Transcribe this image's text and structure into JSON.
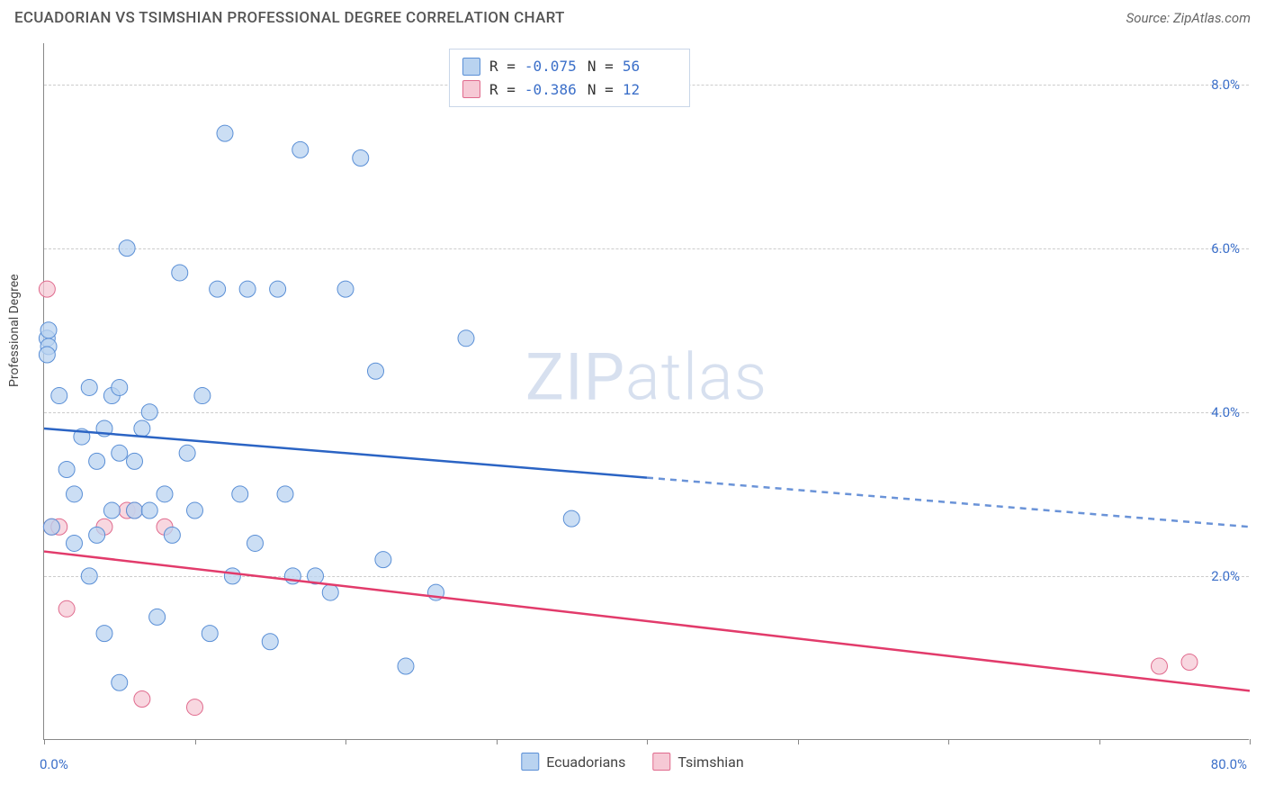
{
  "header": {
    "title": "ECUADORIAN VS TSIMSHIAN PROFESSIONAL DEGREE CORRELATION CHART",
    "source": "Source: ZipAtlas.com"
  },
  "ylabel": "Professional Degree",
  "watermark": {
    "part1": "ZIP",
    "part2": "atlas"
  },
  "chart": {
    "type": "scatter",
    "xlim": [
      0,
      80
    ],
    "ylim": [
      0,
      8.5
    ],
    "ytick_values": [
      2.0,
      4.0,
      6.0,
      8.0
    ],
    "ytick_labels": [
      "2.0%",
      "4.0%",
      "6.0%",
      "8.0%"
    ],
    "xtick_values": [
      0,
      10,
      20,
      30,
      40,
      50,
      60,
      70,
      80
    ],
    "xaxis_min_label": "0.0%",
    "xaxis_max_label": "80.0%",
    "grid_color": "#cccccc",
    "axis_color": "#888888",
    "background_color": "#ffffff"
  },
  "stats_legend": {
    "rows": [
      {
        "swatch_fill": "#b9d3f0",
        "swatch_border": "#5a8fd6",
        "r_label": "R =",
        "r_value": "-0.075",
        "n_label": "N =",
        "n_value": "56"
      },
      {
        "swatch_fill": "#f6c9d5",
        "swatch_border": "#e06a8d",
        "r_label": "R =",
        "r_value": "-0.386",
        "n_label": "N =",
        "n_value": "12"
      }
    ]
  },
  "bottom_legend": {
    "items": [
      {
        "swatch_fill": "#b9d3f0",
        "swatch_border": "#5a8fd6",
        "label": "Ecuadorians"
      },
      {
        "swatch_fill": "#f6c9d5",
        "swatch_border": "#e06a8d",
        "label": "Tsimshian"
      }
    ]
  },
  "series": {
    "ecuadorians": {
      "marker_color_fill": "#b9d3f0",
      "marker_color_stroke": "#5a8fd6",
      "marker_opacity": 0.75,
      "marker_radius": 9,
      "trend": {
        "solid_color": "#2b64c4",
        "dash_color": "#6a93d8",
        "line_width": 2.5,
        "solid": {
          "x1": 0,
          "y1": 3.8,
          "x2": 40,
          "y2": 3.2
        },
        "dashed": {
          "x1": 40,
          "y1": 3.2,
          "x2": 80,
          "y2": 2.6
        }
      },
      "points": [
        {
          "x": 0.2,
          "y": 4.9
        },
        {
          "x": 0.3,
          "y": 4.8
        },
        {
          "x": 0.2,
          "y": 4.7
        },
        {
          "x": 0.3,
          "y": 5.0
        },
        {
          "x": 0.5,
          "y": 2.6
        },
        {
          "x": 1.0,
          "y": 4.2
        },
        {
          "x": 1.5,
          "y": 3.3
        },
        {
          "x": 2.0,
          "y": 2.4
        },
        {
          "x": 2.0,
          "y": 3.0
        },
        {
          "x": 2.5,
          "y": 3.7
        },
        {
          "x": 3.0,
          "y": 4.3
        },
        {
          "x": 3.0,
          "y": 2.0
        },
        {
          "x": 3.5,
          "y": 2.5
        },
        {
          "x": 3.5,
          "y": 3.4
        },
        {
          "x": 4.0,
          "y": 1.3
        },
        {
          "x": 4.0,
          "y": 3.8
        },
        {
          "x": 4.5,
          "y": 4.2
        },
        {
          "x": 4.5,
          "y": 2.8
        },
        {
          "x": 5.0,
          "y": 3.5
        },
        {
          "x": 5.0,
          "y": 0.7
        },
        {
          "x": 5.0,
          "y": 4.3
        },
        {
          "x": 5.5,
          "y": 6.0
        },
        {
          "x": 6.0,
          "y": 3.4
        },
        {
          "x": 6.0,
          "y": 2.8
        },
        {
          "x": 6.5,
          "y": 3.8
        },
        {
          "x": 7.0,
          "y": 2.8
        },
        {
          "x": 7.0,
          "y": 4.0
        },
        {
          "x": 7.5,
          "y": 1.5
        },
        {
          "x": 8.0,
          "y": 3.0
        },
        {
          "x": 8.5,
          "y": 2.5
        },
        {
          "x": 9.0,
          "y": 5.7
        },
        {
          "x": 9.5,
          "y": 3.5
        },
        {
          "x": 10.0,
          "y": 2.8
        },
        {
          "x": 10.5,
          "y": 4.2
        },
        {
          "x": 11.0,
          "y": 1.3
        },
        {
          "x": 11.5,
          "y": 5.5
        },
        {
          "x": 12.0,
          "y": 7.4
        },
        {
          "x": 12.5,
          "y": 2.0
        },
        {
          "x": 13.0,
          "y": 3.0
        },
        {
          "x": 13.5,
          "y": 5.5
        },
        {
          "x": 14.0,
          "y": 2.4
        },
        {
          "x": 15.0,
          "y": 1.2
        },
        {
          "x": 15.5,
          "y": 5.5
        },
        {
          "x": 16.0,
          "y": 3.0
        },
        {
          "x": 16.5,
          "y": 2.0
        },
        {
          "x": 17.0,
          "y": 7.2
        },
        {
          "x": 18.0,
          "y": 2.0
        },
        {
          "x": 19.0,
          "y": 1.8
        },
        {
          "x": 20.0,
          "y": 5.5
        },
        {
          "x": 21.0,
          "y": 7.1
        },
        {
          "x": 22.0,
          "y": 4.5
        },
        {
          "x": 24.0,
          "y": 0.9
        },
        {
          "x": 26.0,
          "y": 1.8
        },
        {
          "x": 28.0,
          "y": 4.9
        },
        {
          "x": 35.0,
          "y": 2.7
        },
        {
          "x": 22.5,
          "y": 2.2
        }
      ]
    },
    "tsimshian": {
      "marker_color_fill": "#f6c9d5",
      "marker_color_stroke": "#e06a8d",
      "marker_opacity": 0.75,
      "marker_radius": 9,
      "trend": {
        "solid_color": "#e23b6b",
        "line_width": 2.5,
        "solid": {
          "x1": 0,
          "y1": 2.3,
          "x2": 80,
          "y2": 0.6
        }
      },
      "points": [
        {
          "x": 0.2,
          "y": 5.5
        },
        {
          "x": 0.5,
          "y": 2.6
        },
        {
          "x": 1.0,
          "y": 2.6
        },
        {
          "x": 1.5,
          "y": 1.6
        },
        {
          "x": 4.0,
          "y": 2.6
        },
        {
          "x": 5.5,
          "y": 2.8
        },
        {
          "x": 6.0,
          "y": 2.8
        },
        {
          "x": 6.5,
          "y": 0.5
        },
        {
          "x": 8.0,
          "y": 2.6
        },
        {
          "x": 10.0,
          "y": 0.4
        },
        {
          "x": 74.0,
          "y": 0.9
        },
        {
          "x": 76.0,
          "y": 0.95
        }
      ]
    }
  }
}
